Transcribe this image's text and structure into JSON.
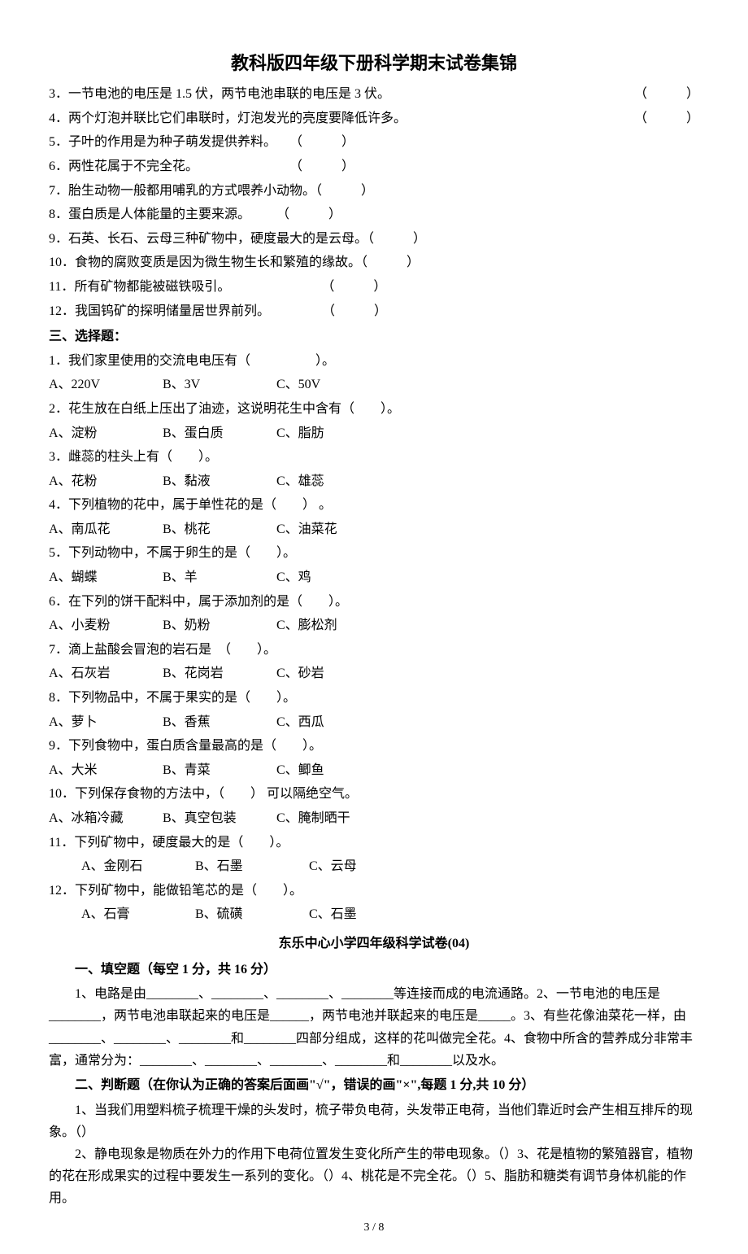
{
  "document": {
    "title": "教科版四年级下册科学期末试卷集锦",
    "page_number": "3 / 8",
    "font_family": "SimSun",
    "font_size": 16,
    "title_font_size": 22,
    "text_color": "#000000",
    "background_color": "#ffffff"
  },
  "judgment_questions": [
    {
      "num": "3．",
      "text": "一节电池的电压是 1.5 伏，两节电池串联的电压是 3 伏。",
      "paren_right": true
    },
    {
      "num": "4．",
      "text": "两个灯泡并联比它们串联时，灯泡发光的亮度要降低许多。",
      "paren_right": true
    },
    {
      "num": "5．",
      "text": "子叶的作用是为种子萌发提供养料。　　（　　　）"
    },
    {
      "num": "6．",
      "text": "两性花属于不完全花。　　　　　　　　（　　　）"
    },
    {
      "num": "7．",
      "text": "胎生动物一般都用哺乳的方式喂养小动物。（　　　）"
    },
    {
      "num": "8．",
      "text": "蛋白质是人体能量的主要来源。　　　（　　　）"
    },
    {
      "num": "9．",
      "text": "石英、长石、云母三种矿物中，硬度最大的是云母。（　　　）"
    },
    {
      "num": "10．",
      "text": "食物的腐败变质是因为微生物生长和繁殖的缘故。（　　　）"
    },
    {
      "num": "11．",
      "text": "所有矿物都能被磁铁吸引。　　　　　　　　（　　　）"
    },
    {
      "num": "12．",
      "text": "我国钨矿的探明储量居世界前列。　　　　　（　　　）"
    }
  ],
  "section3_header": "三、选择题：",
  "choice_questions": [
    {
      "q": "1．我们家里使用的交流电电压有（　　　　　）。",
      "opts": [
        "A、220V",
        "B、3V",
        "C、50V"
      ]
    },
    {
      "q": "2．花生放在白纸上压出了油迹，这说明花生中含有（　　）。",
      "opts": [
        "A、淀粉",
        "B、蛋白质",
        "C、脂肪"
      ]
    },
    {
      "q": "3．雌蕊的柱头上有（　　）。",
      "opts": [
        "A、花粉",
        "B、黏液",
        "C、雄蕊"
      ]
    },
    {
      "q": "4．下列植物的花中，属于单性花的是（　　） 。",
      "opts": [
        "A、南瓜花",
        "B、桃花",
        "C、油菜花"
      ]
    },
    {
      "q": "5．下列动物中，不属于卵生的是（　　）。",
      "opts": [
        "A、蝴蝶",
        "B、羊",
        "C、鸡"
      ]
    },
    {
      "q": "6．在下列的饼干配料中，属于添加剂的是（　　）。",
      "opts": [
        "A、小麦粉",
        "B、奶粉",
        "C、膨松剂"
      ]
    },
    {
      "q": "7．滴上盐酸会冒泡的岩石是　（　　）。",
      "opts": [
        "A、石灰岩",
        "B、花岗岩",
        "C、砂岩"
      ]
    },
    {
      "q": "8．下列物品中，不属于果实的是（　　）。",
      "opts": [
        "A、萝卜",
        "B、香蕉",
        "C、西瓜"
      ]
    },
    {
      "q": "9．下列食物中，蛋白质含量最高的是（　　）。",
      "opts": [
        "A、大米",
        "B、青菜",
        "C、鲫鱼"
      ]
    },
    {
      "q": "10．下列保存食物的方法中，（　　） 可以隔绝空气。",
      "opts": [
        "A、冰箱冷藏",
        "B、真空包装",
        "C、腌制晒干"
      ]
    },
    {
      "q": "11．下列矿物中，硬度最大的是（　　）。",
      "opts": [
        "A、金刚石",
        "B、石墨",
        "C、云母"
      ],
      "indent": true
    },
    {
      "q": "12．下列矿物中，能做铅笔芯的是（　　）。",
      "opts": [
        "A、石膏",
        "B、硫磺",
        "C、石墨"
      ],
      "indent": true
    }
  ],
  "sub_exam": {
    "title": "东乐中心小学四年级科学试卷(04)",
    "section1_header": "一、填空题（每空 1 分，共 16 分）",
    "fill_text": "　　1、电路是由________、________、________、________等连接而成的电流通路。2、一节电池的电压是________，两节电池串联起来的电压是______，两节电池并联起来的电压是_____。3、有些花像油菜花一样，由________、________、________和________四部分组成，这样的花叫做完全花。4、食物中所含的营养成分非常丰富，通常分为：________、________、________、________和________以及水。",
    "section2_header": "二、判断题（在你认为正确的答案后面画\"√\"，错误的画\"×\",每题 1 分,共 10 分）",
    "judge1": "　　1、当我们用塑料梳子梳理干燥的头发时，梳子带负电荷，头发带正电荷，当他们靠近时会产生相互排斥的现象。（）",
    "judge2": "　　2、静电现象是物质在外力的作用下电荷位置发生变化所产生的带电现象。（）3、花是植物的繁殖器官，植物的花在形成果实的过程中要发生一系列的变化。（）4、桃花是不完全花。（）5、脂肪和糖类有调节身体机能的作用。"
  }
}
